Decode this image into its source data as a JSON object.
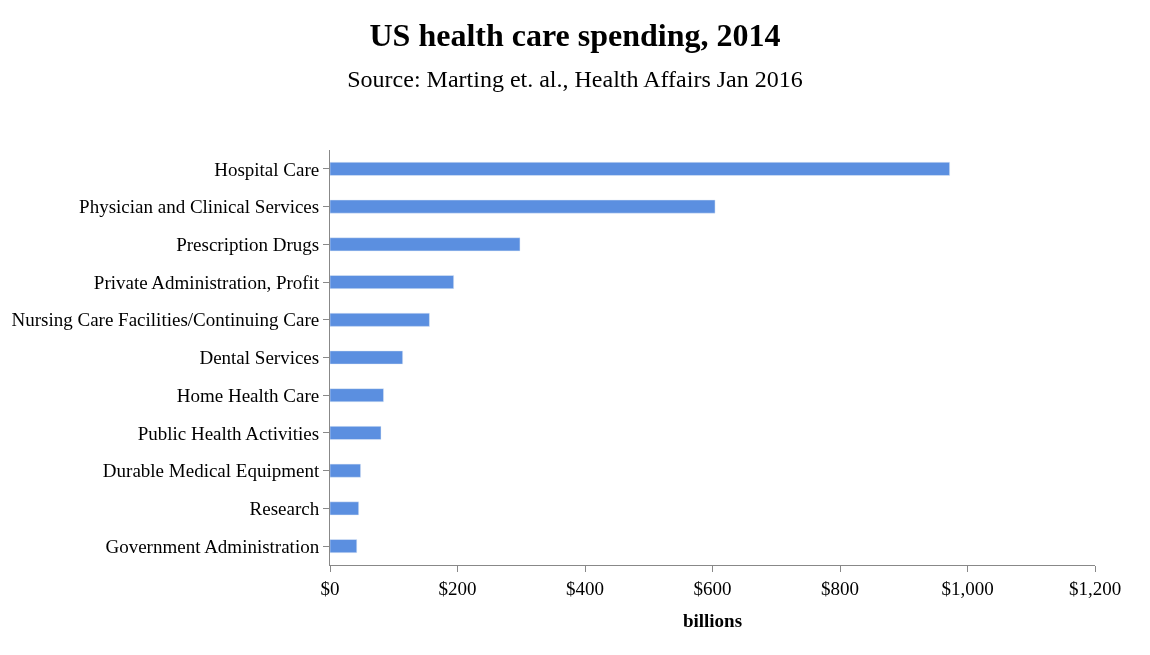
{
  "chart_data": {
    "type": "bar",
    "orientation": "horizontal",
    "title": "US health care spending, 2014",
    "subtitle": "Source: Marting et. al., Health Affairs Jan 2016",
    "xlabel": "billions",
    "categories": [
      "Hospital Care",
      "Physician and Clinical Services",
      "Prescription Drugs",
      "Private Administration, Profit",
      "Nursing Care Facilities/Continuing Care",
      "Dental Services",
      "Home Health Care",
      "Public Health Activities",
      "Durable Medical Equipment",
      "Research",
      "Government Administration"
    ],
    "values": [
      972,
      604,
      298,
      194,
      156,
      114,
      84,
      80,
      48,
      45,
      42
    ],
    "color": "#5b8fe0",
    "xlim": [
      0,
      1200
    ],
    "xticks": [
      {
        "value": 0,
        "label": "$0"
      },
      {
        "value": 200,
        "label": "$200"
      },
      {
        "value": 400,
        "label": "$400"
      },
      {
        "value": 600,
        "label": "$600"
      },
      {
        "value": 800,
        "label": "$800"
      },
      {
        "value": 1000,
        "label": "$1,000"
      },
      {
        "value": 1200,
        "label": "$1,200"
      }
    ],
    "legend": false
  }
}
